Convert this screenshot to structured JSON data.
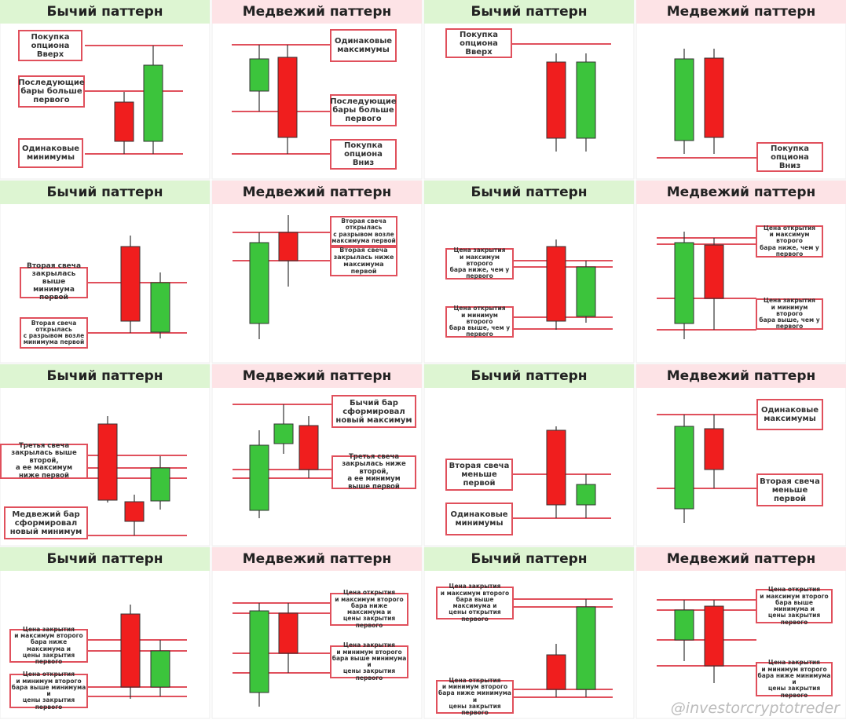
{
  "panels": [
    {
      "title": "Бычий паттерн",
      "labels": [
        "Покупка\nопциона\nВверх",
        "Последующие\nбары больше\nпервого",
        "Одинаковые\nминимумы"
      ]
    },
    {
      "title": "Медвежий паттерн",
      "labels": [
        "Одинаковые\nмаксимумы",
        "Последующие\nбары больше\nпервого",
        "Покупка\nопциона\nВниз"
      ]
    },
    {
      "title": "Бычий паттерн",
      "labels": [
        "Покупка\nопциона\nВверх"
      ]
    },
    {
      "title": "Медвежий паттерн",
      "labels": [
        "Покупка\nопциона\nВниз"
      ]
    },
    {
      "title": "Бычий паттерн",
      "labels": [
        "Вторая свеча\nзакрылась выше\nминимума первой",
        "Вторая свеча\nоткрылась\nс разрывом возле\nминимума первой"
      ]
    },
    {
      "title": "Медвежий паттерн",
      "labels": [
        "Вторая свеча\nоткрылась\nс разрывом возле\nмаксимума первой",
        "Вторая свеча\nзакрылась ниже\nмаксимума первой"
      ]
    },
    {
      "title": "Бычий паттерн",
      "labels": [
        "Цена закрытия\nи максимум второго\nбара ниже, чем у\nпервого",
        "Цена открытия\nи минимум второго\nбара выше, чем у\nпервого"
      ]
    },
    {
      "title": "Медвежий паттерн",
      "labels": [
        "Цена открытия\nи максимум второго\nбара ниже, чем у\nпервого",
        "Цена закрытия\nи минимум второго\nбара выше, чем у\nпервого"
      ]
    },
    {
      "title": "Бычий паттерн",
      "labels": [
        "Третья свеча\nзакрылась выше второй,\nа ее максимум\nниже первой",
        "Медвежий бар\nсформировал\nновый минимум"
      ]
    },
    {
      "title": "Медвежий паттерн",
      "labels": [
        "Бычий бар\nсформировал\nновый максимум",
        "Третья свеча\nзакрылась ниже второй,\nа ее минимум\nвыше первой"
      ]
    },
    {
      "title": "Бычий паттерн",
      "labels": [
        "Вторая свеча\nменьше\nпервой",
        "Одинаковые\nминимумы"
      ]
    },
    {
      "title": "Медвежий паттерн",
      "labels": [
        "Одинаковые\nмаксимумы",
        "Вторая свеча\nменьше\nпервой"
      ]
    },
    {
      "title": "Бычий паттерн",
      "labels": [
        "Цена закрытия\nи максимум второго\nбара ниже максимума и\nцены закрытия первого",
        "Цена открытия\nи минимум второго\nбара выше минимума и\nцены закрытия первого"
      ]
    },
    {
      "title": "Медвежий паттерн",
      "labels": [
        "Цена открытия\nи максимум второго\nбара ниже максимума и\nцены закрытия первого",
        "Цена закрытия\nи минимум второго\nбара выше минимума и\nцены закрытия первого"
      ]
    },
    {
      "title": "Бычий паттерн",
      "labels": [
        "Цена закрытия\nи максимум второго\nбара выше максимума и\nцены открытия первого",
        "Цена открытия\nи минимум второго\nбара ниже минимума и\nцены закрытия первого"
      ]
    },
    {
      "title": "Медвежий паттерн",
      "labels": [
        "Цена открытия\nи максимум второго\nбара выше минимума и\nцены закрытия первого",
        "Цена закрытия\nи минимум второго\nбара ниже минимума и\nцены закрытия первого"
      ]
    }
  ],
  "watermark": "@investorcryptotreder"
}
